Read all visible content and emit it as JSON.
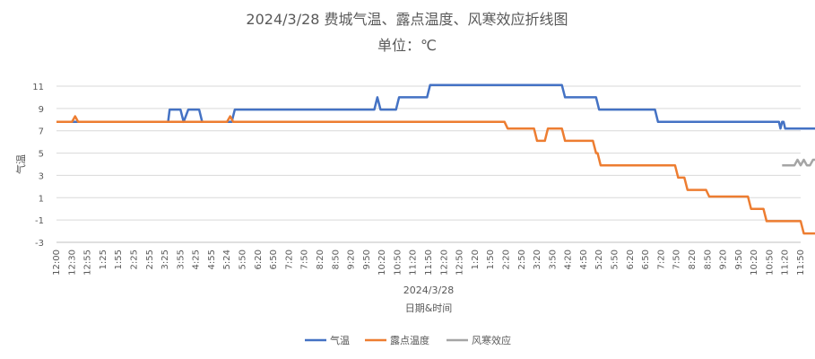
{
  "chart_data": {
    "type": "line",
    "title": "2024/3/28 费城气温、露点温度、风寒效应折线图",
    "subtitle": "单位：℃",
    "ylabel": "气温",
    "xlabel_date": "2024/3/28",
    "xlabel": "日期&时间",
    "ylim": [
      -3,
      11
    ],
    "yticks": [
      11,
      9,
      7,
      5,
      3,
      1,
      -1,
      -3
    ],
    "xticks": [
      "12:00",
      "12:30",
      "12:55",
      "1:25",
      "1:55",
      "2:25",
      "2:55",
      "3:25",
      "3:55",
      "4:25",
      "4:55",
      "5:24",
      "5:50",
      "6:20",
      "6:50",
      "7:20",
      "7:50",
      "8:20",
      "8:50",
      "9:20",
      "9:50",
      "10:20",
      "10:50",
      "11:20",
      "11:50",
      "12:20",
      "12:50",
      "1:20",
      "1:50",
      "2:20",
      "2:50",
      "3:20",
      "3:50",
      "4:20",
      "4:50",
      "5:20",
      "5:50",
      "6:20",
      "6:50",
      "7:20",
      "7:50",
      "8:20",
      "8:50",
      "9:20",
      "9:50",
      "10:20",
      "10:50",
      "11:20",
      "11:50"
    ],
    "series": [
      {
        "name": "气温",
        "color": "#4472c4",
        "points": [
          [
            0,
            7.8
          ],
          [
            7.2,
            7.8
          ],
          [
            7.3,
            8.9
          ],
          [
            8.0,
            8.9
          ],
          [
            8.2,
            7.8
          ],
          [
            8.5,
            8.9
          ],
          [
            9.2,
            8.9
          ],
          [
            9.4,
            7.8
          ],
          [
            11.3,
            7.8
          ],
          [
            11.5,
            8.9
          ],
          [
            20.5,
            8.9
          ],
          [
            20.7,
            10
          ],
          [
            20.9,
            8.9
          ],
          [
            21.9,
            8.9
          ],
          [
            22.1,
            10
          ],
          [
            23.9,
            10
          ],
          [
            24.1,
            11.1
          ],
          [
            32.6,
            11.1
          ],
          [
            32.8,
            10
          ],
          [
            34.8,
            10
          ],
          [
            35.0,
            8.9
          ],
          [
            38.6,
            8.9
          ],
          [
            38.8,
            7.8
          ],
          [
            46.6,
            7.8
          ],
          [
            46.7,
            7.2
          ],
          [
            46.8,
            7.8
          ],
          [
            46.9,
            7.8
          ],
          [
            47.0,
            7.2
          ],
          [
            49,
            7.2
          ]
        ]
      },
      {
        "name": "露点温度",
        "color": "#ed7d31",
        "points": [
          [
            0,
            7.8
          ],
          [
            1.0,
            7.8
          ],
          [
            1.2,
            8.3
          ],
          [
            1.4,
            7.8
          ],
          [
            11.0,
            7.8
          ],
          [
            11.2,
            8.3
          ],
          [
            11.4,
            7.8
          ],
          [
            28.9,
            7.8
          ],
          [
            29.1,
            7.2
          ],
          [
            30.8,
            7.2
          ],
          [
            31.0,
            6.1
          ],
          [
            31.5,
            6.1
          ],
          [
            31.7,
            7.2
          ],
          [
            32.6,
            7.2
          ],
          [
            32.8,
            6.1
          ],
          [
            34.6,
            6.1
          ],
          [
            34.8,
            5.0
          ],
          [
            34.9,
            5.0
          ],
          [
            35.1,
            3.9
          ],
          [
            39.9,
            3.9
          ],
          [
            40.1,
            2.8
          ],
          [
            40.5,
            2.8
          ],
          [
            40.7,
            1.7
          ],
          [
            41.9,
            1.7
          ],
          [
            42.1,
            1.1
          ],
          [
            44.6,
            1.1
          ],
          [
            44.8,
            0
          ],
          [
            45.6,
            0
          ],
          [
            45.8,
            -1.1
          ],
          [
            48.0,
            -1.1
          ],
          [
            48.2,
            -2.2
          ],
          [
            49,
            -2.2
          ]
        ]
      },
      {
        "name": "风寒效应",
        "color": "#a5a5a5",
        "points": [
          [
            46.8,
            3.9
          ],
          [
            47.6,
            3.9
          ],
          [
            47.8,
            4.4
          ],
          [
            48.0,
            3.9
          ],
          [
            48.2,
            4.4
          ],
          [
            48.4,
            3.9
          ],
          [
            48.6,
            3.9
          ],
          [
            48.8,
            4.4
          ],
          [
            49,
            4.4
          ]
        ]
      }
    ],
    "legend_position": "bottom"
  }
}
